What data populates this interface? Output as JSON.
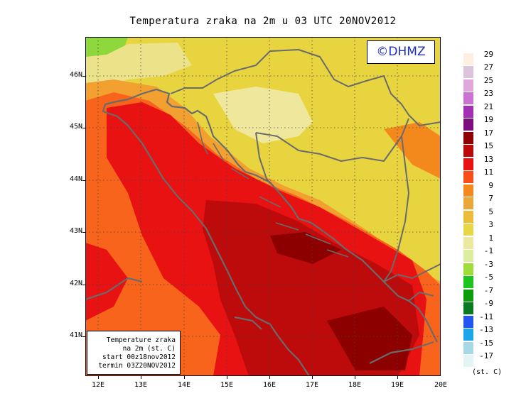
{
  "title": "Temperatura zraka na 2m u 03 UTC 20NOV2012",
  "copyright": "©DHMZ",
  "info_box": {
    "line1": "Temperature zraka",
    "line2": "na 2m (st. C)",
    "line3": "start 00z18nov2012",
    "line4": "termin 03Z20NOV2012"
  },
  "axes": {
    "lat_labels": [
      "46N",
      "45N",
      "44N",
      "43N",
      "42N",
      "41N"
    ],
    "lon_labels": [
      "12E",
      "13E",
      "14E",
      "15E",
      "16E",
      "17E",
      "18E",
      "19E",
      "20E"
    ],
    "lat_range": [
      40.25,
      46.75
    ],
    "lon_range": [
      11.75,
      20.0
    ],
    "grid": "dotted"
  },
  "legend": {
    "units": "(st. C)",
    "labels": [
      "29",
      "27",
      "25",
      "23",
      "21",
      "19",
      "17",
      "15",
      "13",
      "11",
      "9",
      "7",
      "5",
      "3",
      "1",
      "-1",
      "-3",
      "-5",
      "-7",
      "-9",
      "-11",
      "-13",
      "-15",
      "-17"
    ],
    "colors": [
      "#fdf0e1",
      "#dcc4dc",
      "#e0a7dd",
      "#cc72d2",
      "#a330b4",
      "#7e0e80",
      "#8f0000",
      "#ba0a0a",
      "#e81212",
      "#fa4e19",
      "#f3891d",
      "#eca73a",
      "#ebbd3b",
      "#e7d646",
      "#ece8a0",
      "#dceda0",
      "#9fdc3c",
      "#1ec41e",
      "#0c9c0c",
      "#0a7a20",
      "#2356f0",
      "#1aa6e8",
      "#a6d8e6",
      "#e2f4f4"
    ]
  }
}
